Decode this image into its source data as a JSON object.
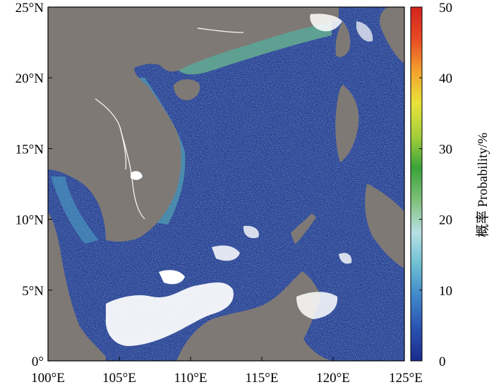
{
  "map": {
    "lon_range": [
      100,
      125
    ],
    "lat_range": [
      0,
      25
    ],
    "x_ticks": [
      {
        "value": 100,
        "label": "100°E"
      },
      {
        "value": 105,
        "label": "105°E"
      },
      {
        "value": 110,
        "label": "110°E"
      },
      {
        "value": 115,
        "label": "115°E"
      },
      {
        "value": 120,
        "label": "120°E"
      },
      {
        "value": 125,
        "label": "125°E"
      }
    ],
    "y_ticks": [
      {
        "value": 0,
        "label": "0°"
      },
      {
        "value": 5,
        "label": "5°N"
      },
      {
        "value": 10,
        "label": "10°N"
      },
      {
        "value": 15,
        "label": "15°N"
      },
      {
        "value": 20,
        "label": "20°N"
      },
      {
        "value": 25,
        "label": "25°N"
      }
    ],
    "land_color": "#7f7975",
    "no_data_color": "#ffffff"
  },
  "colorbar": {
    "label": "概率 Probability/%",
    "min": 0,
    "max": 50,
    "ticks": [
      {
        "value": 0,
        "label": "0"
      },
      {
        "value": 10,
        "label": "10"
      },
      {
        "value": 20,
        "label": "20"
      },
      {
        "value": 30,
        "label": "30"
      },
      {
        "value": 40,
        "label": "40"
      },
      {
        "value": 50,
        "label": "50"
      }
    ],
    "colors": [
      "#1b2b8c",
      "#2a52b0",
      "#3f86c9",
      "#6fc0d4",
      "#b7e0e3",
      "#7ec07a",
      "#3aa33a",
      "#a6cf3a",
      "#e8e33a",
      "#f4a22e",
      "#e84a24",
      "#d3231e"
    ]
  }
}
